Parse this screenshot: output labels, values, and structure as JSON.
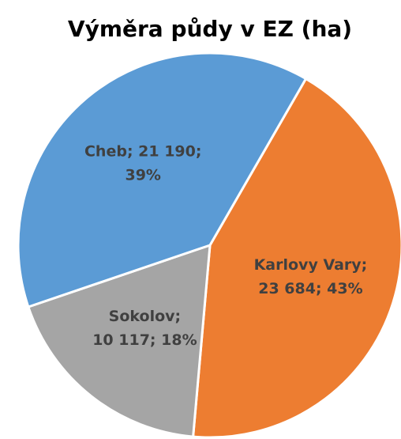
{
  "chart_data": {
    "type": "pie",
    "title": "Výměra půdy v EZ (ha)",
    "values": [
      23684,
      10117,
      21190
    ],
    "value_labels": [
      [
        "Karlovy Vary;",
        "23 684; 43%"
      ],
      [
        "Sokolov;",
        "10 117; 18%"
      ],
      [
        "Cheb; 21 190;",
        "39%"
      ]
    ],
    "colors": [
      "#ed7d31",
      "#a5a5a5",
      "#5b9bd5"
    ]
  }
}
